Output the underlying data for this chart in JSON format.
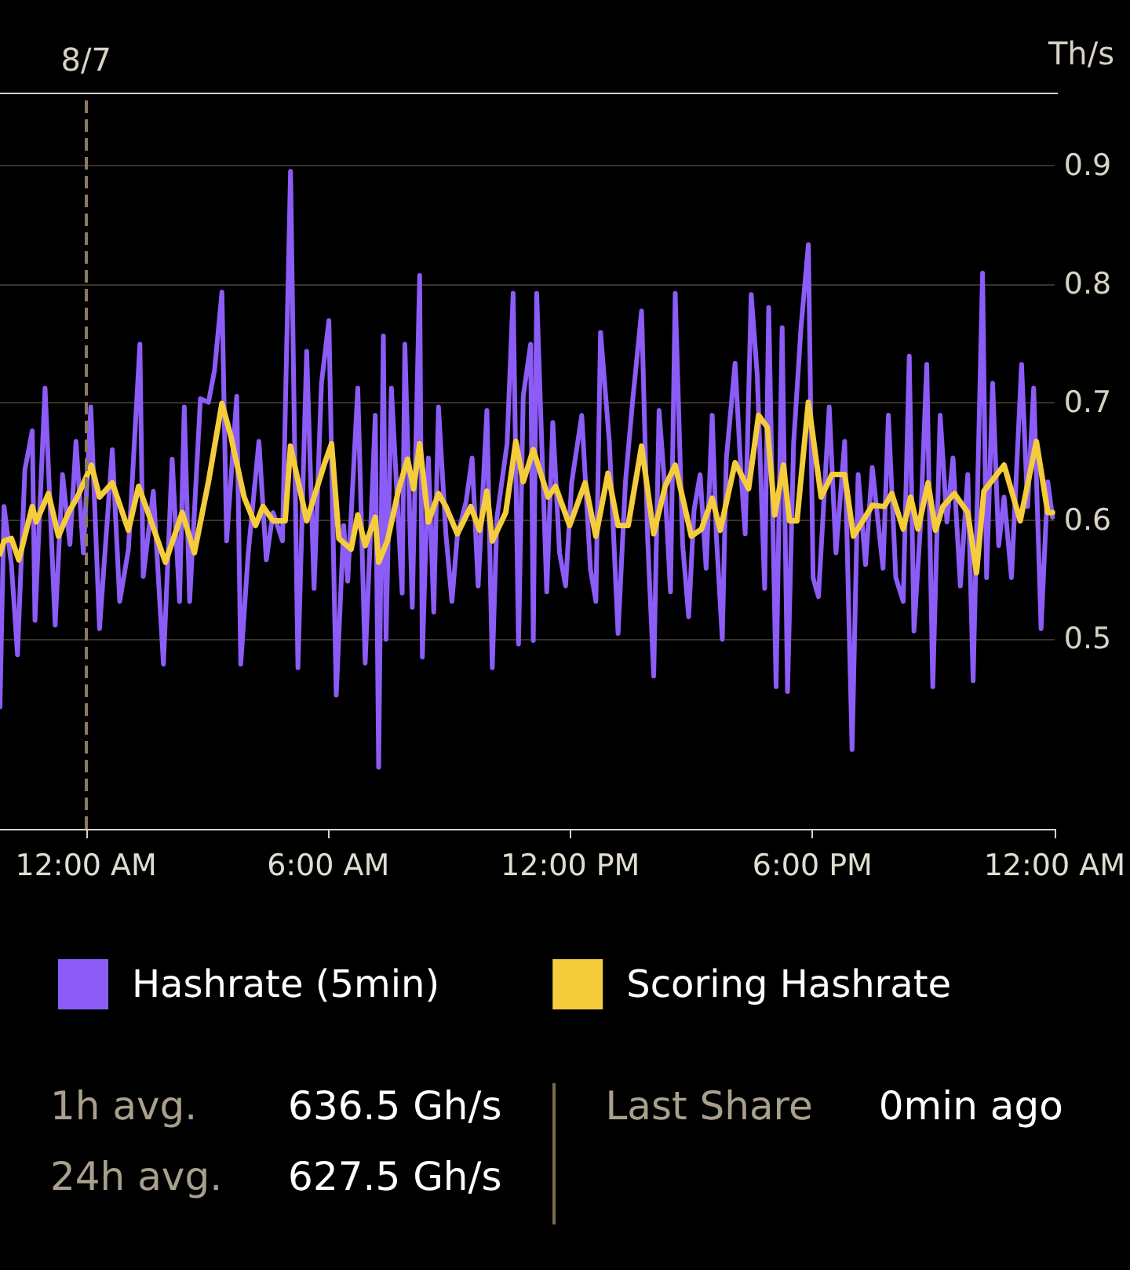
{
  "chart_data": {
    "type": "line",
    "ylabel": "Th/s",
    "xlim": [
      "--08-06T21:52",
      "--08-08T00:00"
    ],
    "xticks": [
      {
        "value": "--08-07T00:00",
        "label": "12:00 AM"
      },
      {
        "value": "--08-07T06:00",
        "label": "6:00 AM"
      },
      {
        "value": "--08-07T12:00",
        "label": "12:00 PM"
      },
      {
        "value": "--08-07T18:00",
        "label": "6:00 PM"
      },
      {
        "value": "--08-08T00:00",
        "label": "12:00 AM"
      }
    ],
    "ylim": [
      0.34,
      0.96
    ],
    "yticks": [
      0.5,
      0.6,
      0.7,
      0.8,
      0.9
    ],
    "grid": "y",
    "legend": "bottom",
    "ref_lines": [
      {
        "axis": "x",
        "value": "--08-07T00:00",
        "label": "8/7",
        "color": "#8a7a5e",
        "line_style": "dashed"
      }
    ],
    "annotations": [
      "1h avg.",
      "636.5 Gh/s",
      "24h avg.",
      "627.5 Gh/s",
      "Last Share",
      "0min ago"
    ],
    "series": [
      {
        "name": "Hashrate (5min)",
        "color": "#8b5cf6",
        "x": [
          "--08-06T21:52",
          "--08-06T21:58",
          "--08-06T22:09",
          "--08-06T22:18",
          "--08-06T22:29",
          "--08-06T22:40",
          "--08-06T22:44",
          "--08-06T22:59",
          "--08-06T23:14",
          "--08-06T23:25",
          "--08-06T23:36",
          "--08-06T23:45",
          "--08-06T23:56",
          "--08-07T00:07",
          "--08-07T00:20",
          "--08-07T00:39",
          "--08-07T00:50",
          "--08-07T01:03",
          "--08-07T01:20",
          "--08-07T01:25",
          "--08-07T01:40",
          "--08-07T01:55",
          "--08-07T02:08",
          "--08-07T02:19",
          "--08-07T02:26",
          "--08-07T02:34",
          "--08-07T02:50",
          "--08-07T03:02",
          "--08-07T03:11",
          "--08-07T03:22",
          "--08-07T03:29",
          "--08-07T03:44",
          "--08-07T03:50",
          "--08-07T04:01",
          "--08-07T04:17",
          "--08-07T04:28",
          "--08-07T04:38",
          "--08-07T04:52",
          "--08-07T05:04",
          "--08-07T05:15",
          "--08-07T05:28",
          "--08-07T05:39",
          "--08-07T05:50",
          "--08-07T06:01",
          "--08-07T06:12",
          "--08-07T06:23",
          "--08-07T06:29",
          "--08-07T06:44",
          "--08-07T06:55",
          "--08-07T07:10",
          "--08-07T07:15",
          "--08-07T07:22",
          "--08-07T07:26",
          "--08-07T07:34",
          "--08-07T07:50",
          "--08-07T07:54",
          "--08-07T08:05",
          "--08-07T08:16",
          "--08-07T08:20",
          "--08-07T08:29",
          "--08-07T08:37",
          "--08-07T08:44",
          "--08-07T08:55",
          "--08-07T09:04",
          "--08-07T09:12",
          "--08-07T09:25",
          "--08-07T09:34",
          "--08-07T09:43",
          "--08-07T09:56",
          "--08-07T10:04",
          "--08-07T10:11",
          "--08-07T10:26",
          "--08-07T10:35",
          "--08-07T10:43",
          "--08-07T10:50",
          "--08-07T11:01",
          "--08-07T11:05",
          "--08-07T11:10",
          "--08-07T11:25",
          "--08-07T11:34",
          "--08-07T11:44",
          "--08-07T11:53",
          "--08-07T12:02",
          "--08-07T12:17",
          "--08-07T12:30",
          "--08-07T12:38",
          "--08-07T12:45",
          "--08-07T12:58",
          "--08-07T13:11",
          "--08-07T13:22",
          "--08-07T13:33",
          "--08-07T13:46",
          "--08-07T13:55",
          "--08-07T14:04",
          "--08-07T14:12",
          "--08-07T14:21",
          "--08-07T14:29",
          "--08-07T14:36",
          "--08-07T14:47",
          "--08-07T14:56",
          "--08-07T15:04",
          "--08-07T15:13",
          "--08-07T15:22",
          "--08-07T15:31",
          "--08-07T15:37",
          "--08-07T15:46",
          "--08-07T15:52",
          "--08-07T16:05",
          "--08-07T16:14",
          "--08-07T16:20",
          "--08-07T16:29",
          "--08-07T16:38",
          "--08-07T16:49",
          "--08-07T16:55",
          "--08-07T17:06",
          "--08-07T17:15",
          "--08-07T17:23",
          "--08-07T17:32",
          "--08-07T17:43",
          "--08-07T17:54",
          "--08-07T18:01",
          "--08-07T18:09",
          "--08-07T18:25",
          "--08-07T18:35",
          "--08-07T18:48",
          "--08-07T18:59",
          "--08-07T19:08",
          "--08-07T19:19",
          "--08-07T19:29",
          "--08-07T19:45",
          "--08-07T19:53",
          "--08-07T20:04",
          "--08-07T20:15",
          "--08-07T20:24",
          "--08-07T20:31",
          "--08-07T20:41",
          "--08-07T20:50",
          "--08-07T20:59",
          "--08-07T21:10",
          "--08-07T21:20",
          "--08-07T21:29",
          "--08-07T21:40",
          "--08-07T21:51",
          "--08-07T21:59",
          "--08-07T22:13",
          "--08-07T22:19",
          "--08-07T22:28",
          "--08-07T22:37",
          "--08-07T22:45",
          "--08-07T22:56",
          "--08-07T23:11",
          "--08-07T23:20",
          "--08-07T23:29",
          "--08-07T23:40",
          "--08-07T23:50",
          "--08-07T23:57"
        ],
        "values": [
          0.443,
          0.612,
          0.563,
          0.487,
          0.643,
          0.676,
          0.516,
          0.712,
          0.512,
          0.639,
          0.58,
          0.667,
          0.573,
          0.696,
          0.509,
          0.66,
          0.532,
          0.576,
          0.749,
          0.553,
          0.625,
          0.479,
          0.652,
          0.532,
          0.696,
          0.532,
          0.703,
          0.7,
          0.727,
          0.793,
          0.583,
          0.705,
          0.479,
          0.572,
          0.667,
          0.567,
          0.607,
          0.583,
          0.895,
          0.476,
          0.743,
          0.543,
          0.716,
          0.769,
          0.453,
          0.596,
          0.549,
          0.712,
          0.48,
          0.689,
          0.392,
          0.756,
          0.5,
          0.712,
          0.539,
          0.749,
          0.527,
          0.807,
          0.485,
          0.653,
          0.523,
          0.696,
          0.589,
          0.532,
          0.587,
          0.616,
          0.653,
          0.545,
          0.693,
          0.476,
          0.603,
          0.665,
          0.792,
          0.496,
          0.705,
          0.749,
          0.499,
          0.792,
          0.54,
          0.683,
          0.573,
          0.545,
          0.632,
          0.689,
          0.559,
          0.532,
          0.759,
          0.667,
          0.505,
          0.633,
          0.703,
          0.777,
          0.585,
          0.469,
          0.693,
          0.625,
          0.54,
          0.792,
          0.58,
          0.519,
          0.609,
          0.639,
          0.56,
          0.689,
          0.589,
          0.5,
          0.652,
          0.733,
          0.639,
          0.589,
          0.791,
          0.723,
          0.543,
          0.78,
          0.46,
          0.763,
          0.456,
          0.665,
          0.763,
          0.833,
          0.552,
          0.536,
          0.696,
          0.573,
          0.667,
          0.407,
          0.639,
          0.563,
          0.645,
          0.56,
          0.689,
          0.552,
          0.532,
          0.739,
          0.507,
          0.599,
          0.732,
          0.46,
          0.689,
          0.599,
          0.653,
          0.545,
          0.639,
          0.465,
          0.809,
          0.552,
          0.716,
          0.579,
          0.62,
          0.552,
          0.732,
          0.612,
          0.712,
          0.509,
          0.633,
          0.603
        ]
      },
      {
        "name": "Scoring Hashrate",
        "color": "#f4cc3c",
        "x": [
          "--08-06T21:52",
          "--08-06T21:58",
          "--08-06T22:09",
          "--08-06T22:20",
          "--08-06T22:40",
          "--08-06T22:46",
          "--08-06T23:04",
          "--08-06T23:19",
          "--08-06T23:34",
          "--08-06T23:47",
          "--08-07T00:08",
          "--08-07T00:20",
          "--08-07T00:39",
          "--08-07T01:03",
          "--08-07T01:18",
          "--08-07T01:29",
          "--08-07T01:58",
          "--08-07T02:23",
          "--08-07T02:41",
          "--08-07T03:02",
          "--08-07T03:22",
          "--08-07T03:35",
          "--08-07T03:55",
          "--08-07T04:12",
          "--08-07T04:23",
          "--08-07T04:38",
          "--08-07T04:56",
          "--08-07T05:04",
          "--08-07T05:28",
          "--08-07T05:55",
          "--08-07T06:05",
          "--08-07T06:16",
          "--08-07T06:34",
          "--08-07T06:44",
          "--08-07T06:55",
          "--08-07T07:10",
          "--08-07T07:15",
          "--08-07T07:28",
          "--08-07T07:45",
          "--08-07T07:58",
          "--08-07T08:07",
          "--08-07T08:16",
          "--08-07T08:29",
          "--08-07T08:44",
          "--08-07T08:55",
          "--08-07T09:12",
          "--08-07T09:32",
          "--08-07T09:45",
          "--08-07T09:56",
          "--08-07T10:04",
          "--08-07T10:24",
          "--08-07T10:39",
          "--08-07T10:50",
          "--08-07T11:05",
          "--08-07T11:27",
          "--08-07T11:38",
          "--08-07T11:59",
          "--08-07T12:22",
          "--08-07T12:38",
          "--08-07T12:56",
          "--08-07T13:11",
          "--08-07T13:26",
          "--08-07T13:46",
          "--08-07T14:04",
          "--08-07T14:21",
          "--08-07T14:36",
          "--08-07T15:00",
          "--08-07T15:15",
          "--08-07T15:31",
          "--08-07T15:43",
          "--08-07T16:05",
          "--08-07T16:25",
          "--08-07T16:40",
          "--08-07T16:53",
          "--08-07T17:04",
          "--08-07T17:17",
          "--08-07T17:26",
          "--08-07T17:37",
          "--08-07T17:54",
          "--08-07T18:13",
          "--08-07T18:29",
          "--08-07T18:48",
          "--08-07T19:01",
          "--08-07T19:29",
          "--08-07T19:47",
          "--08-07T19:58",
          "--08-07T20:15",
          "--08-07T20:26",
          "--08-07T20:37",
          "--08-07T20:52",
          "--08-07T21:03",
          "--08-07T21:14",
          "--08-07T21:31",
          "--08-07T21:51",
          "--08-07T22:04",
          "--08-07T22:15",
          "--08-07T22:45",
          "--08-07T23:09",
          "--08-07T23:33",
          "--08-07T23:50",
          "--08-07T23:57"
        ],
        "values": [
          0.572,
          0.583,
          0.585,
          0.567,
          0.612,
          0.599,
          0.623,
          0.587,
          0.607,
          0.62,
          0.647,
          0.62,
          0.632,
          0.592,
          0.629,
          0.612,
          0.565,
          0.607,
          0.573,
          0.633,
          0.699,
          0.672,
          0.62,
          0.596,
          0.612,
          0.6,
          0.6,
          0.663,
          0.6,
          0.649,
          0.665,
          0.585,
          0.576,
          0.605,
          0.579,
          0.603,
          0.565,
          0.583,
          0.627,
          0.652,
          0.627,
          0.665,
          0.599,
          0.623,
          0.612,
          0.589,
          0.612,
          0.592,
          0.625,
          0.583,
          0.607,
          0.667,
          0.633,
          0.66,
          0.62,
          0.629,
          0.596,
          0.632,
          0.587,
          0.64,
          0.596,
          0.596,
          0.663,
          0.589,
          0.629,
          0.647,
          0.587,
          0.593,
          0.619,
          0.592,
          0.649,
          0.627,
          0.689,
          0.679,
          0.605,
          0.647,
          0.6,
          0.6,
          0.7,
          0.62,
          0.639,
          0.639,
          0.587,
          0.613,
          0.612,
          0.623,
          0.593,
          0.62,
          0.593,
          0.632,
          0.592,
          0.612,
          0.623,
          0.607,
          0.556,
          0.625,
          0.647,
          0.6,
          0.667,
          0.607,
          0.607
        ]
      }
    ]
  }
}
